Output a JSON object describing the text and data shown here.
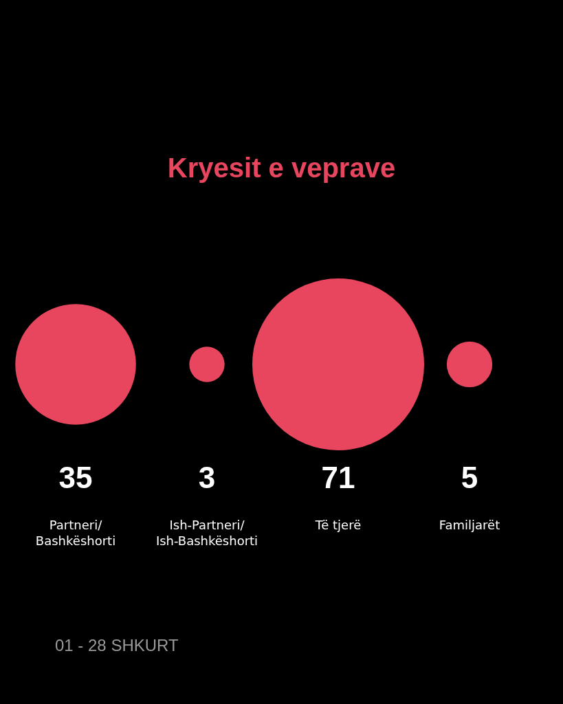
{
  "chart_data": {
    "type": "other",
    "title": "Kryesit e veprave",
    "categories": [
      "Partneri/Bashkëshorti",
      "Ish-Partneri/Ish-Bashkëshorti",
      "Të tjerë",
      "Familjarët"
    ],
    "values": [
      35,
      3,
      71,
      5
    ],
    "color": "#e8465f",
    "data_labels": true,
    "annotations": [
      "01 - 28 SHKURT"
    ]
  }
}
